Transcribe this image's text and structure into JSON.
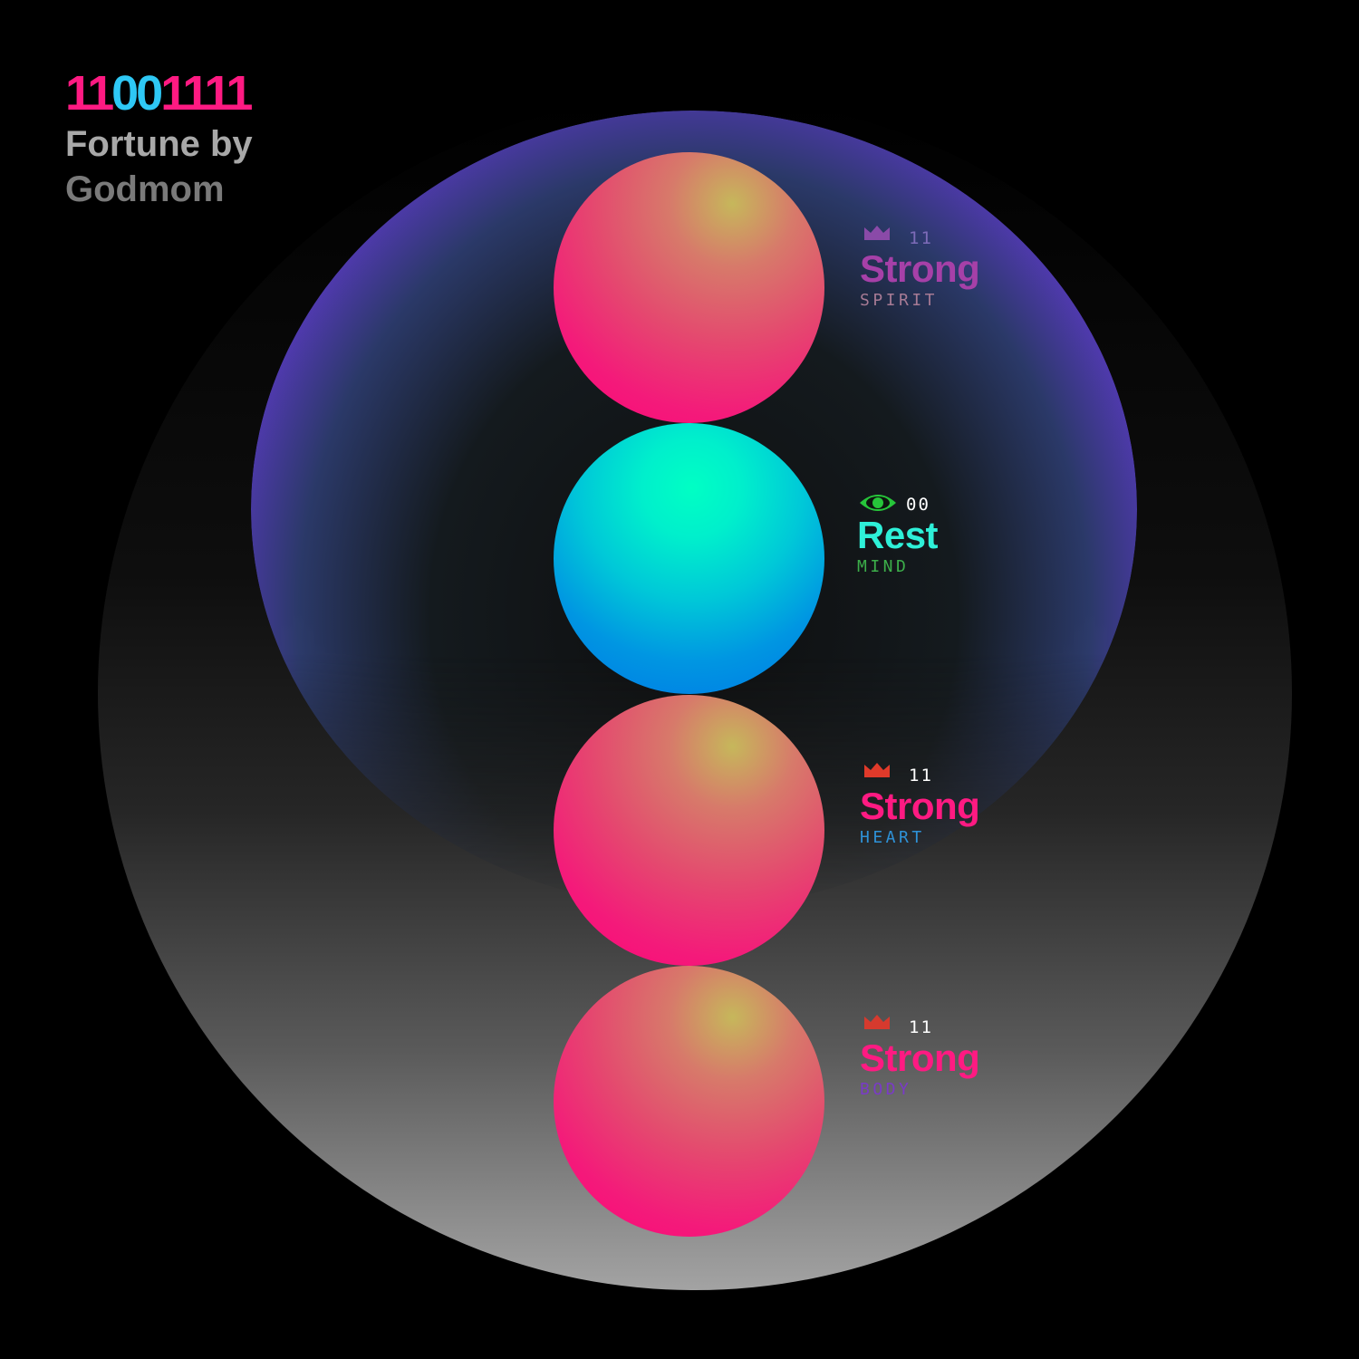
{
  "header": {
    "code": "11001111",
    "line1": "Fortune by",
    "line2": "Godmom"
  },
  "colors": {
    "one": "#ff1a82",
    "zero": "#2ec8f5",
    "aura_edge": "#7a3afa",
    "strong_text": "#ff1a82",
    "rest_text": "#2ef0d8"
  },
  "readings": [
    {
      "icon": "crown-icon",
      "bits": "11",
      "state": "Strong",
      "aspect": "SPIRIT",
      "colors": {
        "icon": "#8a4aa8",
        "bits": "#7d6bb8",
        "state": "#a640a8",
        "aspect": "#a67a94"
      }
    },
    {
      "icon": "eye-icon",
      "bits": "00",
      "state": "Rest",
      "aspect": "MIND",
      "colors": {
        "icon": "#26c53a",
        "bits": "#ffffff",
        "state": "#2ef0d8",
        "aspect": "#3cae4a"
      }
    },
    {
      "icon": "crown-icon",
      "bits": "11",
      "state": "Strong",
      "aspect": "HEART",
      "colors": {
        "icon": "#e03a2a",
        "bits": "#ffffff",
        "state": "#ff1a82",
        "aspect": "#2e92d8"
      }
    },
    {
      "icon": "crown-icon",
      "bits": "11",
      "state": "Strong",
      "aspect": "BODY",
      "colors": {
        "icon": "#d63a2e",
        "bits": "#ffffff",
        "state": "#ff1a82",
        "aspect": "#7a3ac8"
      }
    }
  ]
}
